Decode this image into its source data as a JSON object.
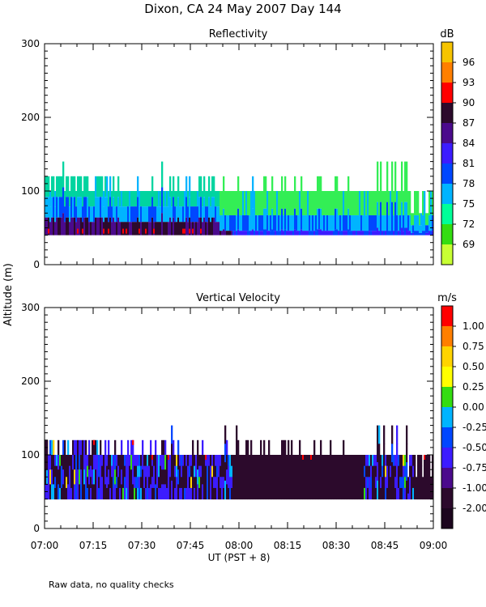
{
  "title": "Dixon, CA 24 May 2007  Day 144",
  "footer_note": "Raw data, no quality checks",
  "shared_ylabel": "Altitude (m)",
  "shared_xlabel": "UT  (PST + 8)",
  "chart_data": [
    {
      "type": "heatmap",
      "title": "Reflectivity",
      "unit": "dB",
      "ylim": [
        0,
        300
      ],
      "yticks": [
        0,
        100,
        200,
        300
      ],
      "colorbar_labels": [
        "96",
        "93",
        "90",
        "87",
        "84",
        "81",
        "78",
        "75",
        "72",
        "69"
      ],
      "colorbar_colors": [
        "#f6c400",
        "#ff7f00",
        "#ff0000",
        "#2c0a2c",
        "#4b0a8c",
        "#3c1cff",
        "#0047ff",
        "#00b4ff",
        "#00ff99",
        "#33dd11",
        "#c8ff33"
      ],
      "data_altitude_range_m": [
        40,
        140
      ],
      "colors": {
        "bg": "#ffffff",
        "near_ground": "#2c0a2c",
        "low": "#3c1cff",
        "mid": "#00b4ff",
        "high": "#33ee55"
      }
    },
    {
      "type": "heatmap",
      "title": "Vertical Velocity",
      "unit": "m/s",
      "ylim": [
        0,
        300
      ],
      "yticks": [
        0,
        100,
        200,
        300
      ],
      "colorbar_labels": [
        "1.00",
        "0.75",
        "0.50",
        "0.25",
        "0.00",
        "-0.25",
        "-0.50",
        "-0.75",
        "-1.00",
        "-2.00"
      ],
      "colorbar_colors": [
        "#ff0000",
        "#ff7f00",
        "#ffd400",
        "#ffff00",
        "#33dd11",
        "#00b4ff",
        "#0047ff",
        "#3c1cff",
        "#4b0a8c",
        "#2c0a2c",
        "#1c061e"
      ],
      "data_altitude_range_m": [
        40,
        140
      ],
      "colors": {
        "bg": "#ffffff",
        "dominant": "#2c0a2c",
        "noise": "#3c1cff"
      }
    }
  ],
  "xaxis": {
    "xlim": [
      "07:00",
      "09:00"
    ],
    "tick_labels": [
      "07:00",
      "07:15",
      "07:30",
      "07:45",
      "08:00",
      "08:15",
      "08:30",
      "08:45",
      "09:00"
    ]
  }
}
